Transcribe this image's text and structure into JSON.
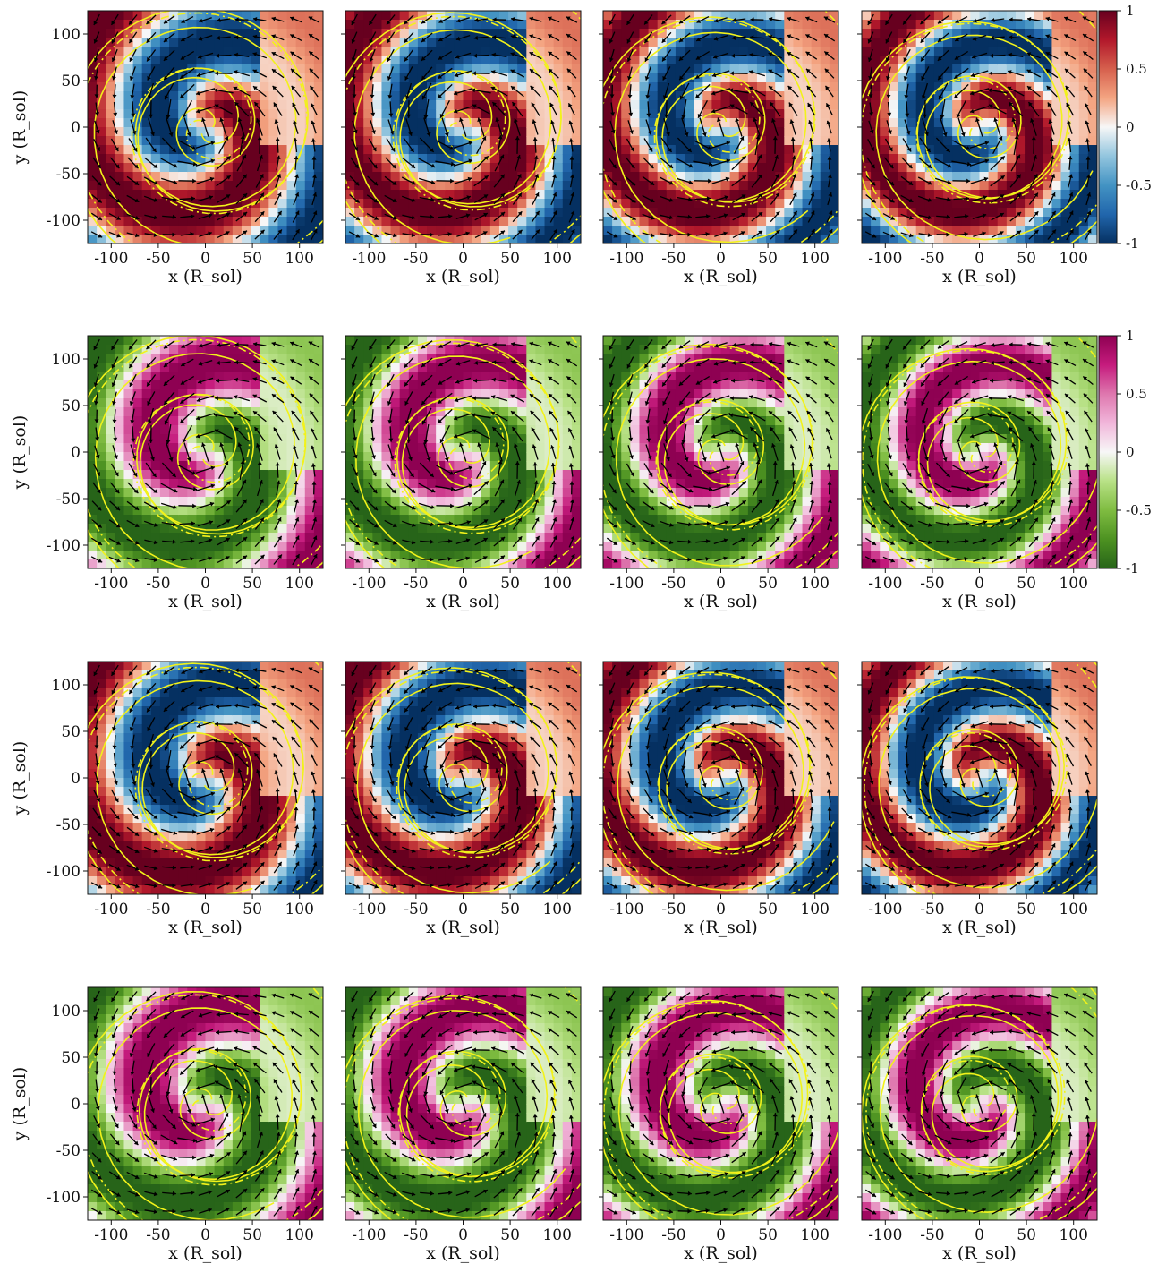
{
  "chart_data": {
    "type": "heatmap",
    "description_axes": {
      "xlabel": "x (R_sol)",
      "ylabel": "y (R_sol)",
      "xlim": [
        -125,
        125
      ],
      "ylim": [
        -125,
        125
      ],
      "xticks": [
        "-100",
        "-50",
        "0",
        "50",
        "100"
      ],
      "yticks": [
        "100",
        "50",
        "0",
        "-50",
        "-100"
      ]
    },
    "colorbars": [
      {
        "row": 0,
        "colormap": "RdBu_r",
        "range": [
          -1,
          1
        ],
        "ticks": [
          "1",
          "0.5",
          "0",
          "-0.5",
          "-1"
        ],
        "colors": [
          "#053061",
          "#2166ac",
          "#4393c3",
          "#92c5de",
          "#f7f7f7",
          "#f4a582",
          "#d6604d",
          "#b2182b",
          "#67001f"
        ]
      },
      {
        "row": 1,
        "colormap": "PiYG_r",
        "range": [
          -1,
          1
        ],
        "ticks": [
          "1",
          "0.5",
          "0",
          "-0.5",
          "-1"
        ],
        "colors": [
          "#276419",
          "#4d9221",
          "#7fbc41",
          "#b8e186",
          "#f7f7f7",
          "#f1b6da",
          "#de77ae",
          "#c51b7d",
          "#8e0152"
        ]
      }
    ],
    "rows": 4,
    "cols": 4,
    "row_colormaps": [
      "RdBu_r",
      "PiYG_r",
      "RdBu_r",
      "PiYG_r"
    ],
    "contour_color": "#f2f21a",
    "vector_color": "#000000"
  }
}
